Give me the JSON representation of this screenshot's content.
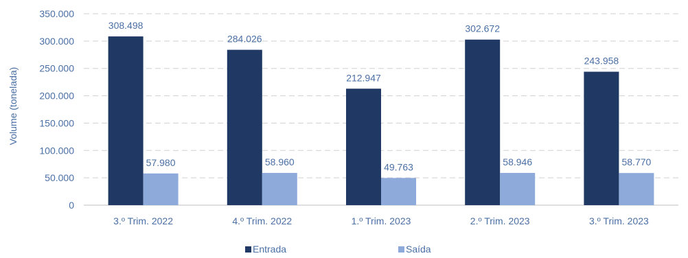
{
  "chart_data": {
    "type": "bar",
    "categories": [
      "3.º Trim. 2022",
      "4.º Trim. 2022",
      "1.º Trim. 2023",
      "2.º Trim. 2023",
      "3.º Trim. 2023"
    ],
    "series": [
      {
        "name": "Entrada",
        "color": "#1f3864",
        "values": [
          308498,
          284026,
          212947,
          302672,
          243958
        ],
        "labels": [
          "308.498",
          "284.026",
          "212.947",
          "302.672",
          "243.958"
        ]
      },
      {
        "name": "Saída",
        "color": "#8eaadb",
        "values": [
          57980,
          58960,
          49763,
          58946,
          58770
        ],
        "labels": [
          "57.980",
          "58.960",
          "49.763",
          "58.946",
          "58.770"
        ]
      }
    ],
    "ylabel": "Volume (tonelada)",
    "ylim": [
      0,
      350000
    ],
    "yticks": [
      0,
      50000,
      100000,
      150000,
      200000,
      250000,
      300000,
      350000
    ],
    "ytick_labels": [
      "0",
      "50.000",
      "100.000",
      "150.000",
      "200.000",
      "250.000",
      "300.000",
      "350.000"
    ],
    "grid": true,
    "legend_position": "bottom"
  },
  "colors": {
    "text": "#4a6fa5",
    "grid": "#d0d0d0",
    "axis": "#bfbfbf"
  }
}
